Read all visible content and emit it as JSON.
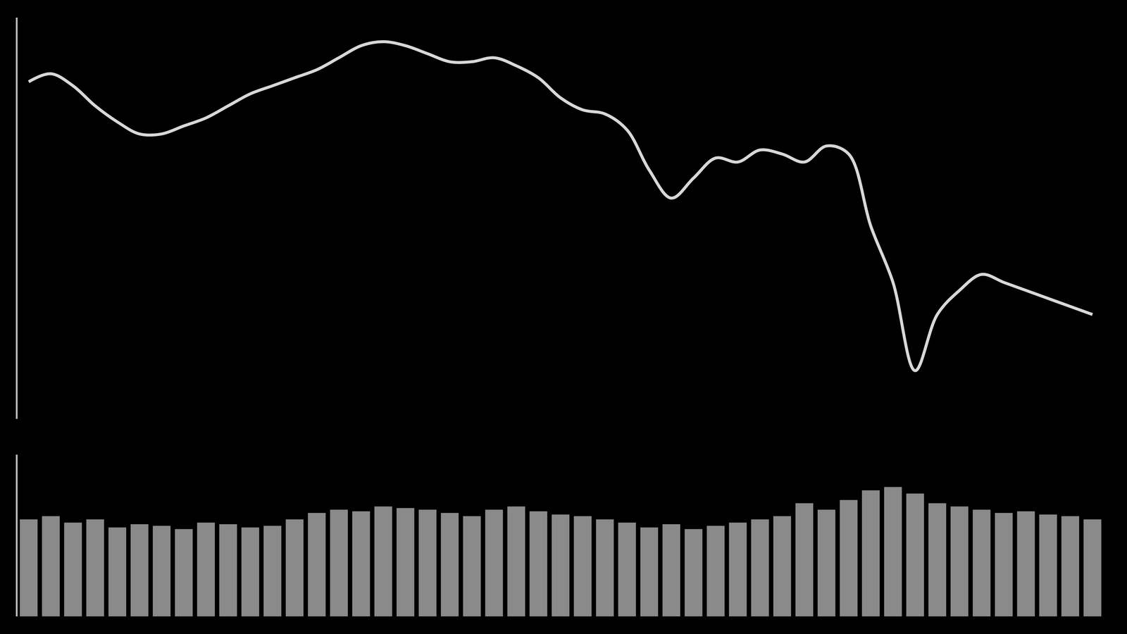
{
  "chart_data": [
    {
      "type": "line",
      "color": "#d8d8d8",
      "grid": false,
      "tick_labels": false,
      "x": [
        0,
        1,
        2,
        3,
        4,
        5,
        6,
        7,
        8,
        9,
        10,
        11,
        12,
        13,
        14,
        15,
        16,
        17,
        18,
        19,
        20,
        21,
        22,
        23,
        24,
        25,
        26,
        27,
        28,
        29,
        30,
        31,
        32,
        33,
        34,
        35,
        36,
        37,
        38,
        39,
        40,
        41,
        42,
        43,
        44,
        45,
        46,
        47,
        48
      ],
      "values": [
        84,
        86,
        83,
        78,
        74,
        71,
        71,
        73,
        75,
        78,
        81,
        83,
        85,
        87,
        90,
        93,
        94,
        93,
        91,
        89,
        89,
        90,
        88,
        85,
        80,
        77,
        76,
        72,
        62,
        55,
        60,
        65,
        64,
        67,
        66,
        64,
        68,
        66,
        48,
        34,
        12,
        26,
        32,
        36,
        34,
        32,
        30,
        28,
        26
      ],
      "xlim": [
        -0.5,
        48.5
      ],
      "ylim": [
        0,
        100
      ]
    },
    {
      "type": "bar",
      "color": "#8a8a8a",
      "grid": false,
      "tick_labels": false,
      "x": [
        0,
        1,
        2,
        3,
        4,
        5,
        6,
        7,
        8,
        9,
        10,
        11,
        12,
        13,
        14,
        15,
        16,
        17,
        18,
        19,
        20,
        21,
        22,
        23,
        24,
        25,
        26,
        27,
        28,
        29,
        30,
        31,
        32,
        33,
        34,
        35,
        36,
        37,
        38,
        39,
        40,
        41,
        42,
        43,
        44,
        45,
        46,
        47,
        48
      ],
      "values": [
        60,
        62,
        58,
        60,
        55,
        57,
        56,
        54,
        58,
        57,
        55,
        56,
        60,
        64,
        66,
        65,
        68,
        67,
        66,
        64,
        62,
        66,
        68,
        65,
        63,
        62,
        60,
        58,
        55,
        57,
        54,
        56,
        58,
        60,
        62,
        70,
        66,
        72,
        78,
        80,
        76,
        70,
        68,
        66,
        64,
        65,
        63,
        62,
        60
      ],
      "xlim": [
        -0.5,
        48.5
      ],
      "ylim": [
        0,
        100
      ]
    }
  ]
}
